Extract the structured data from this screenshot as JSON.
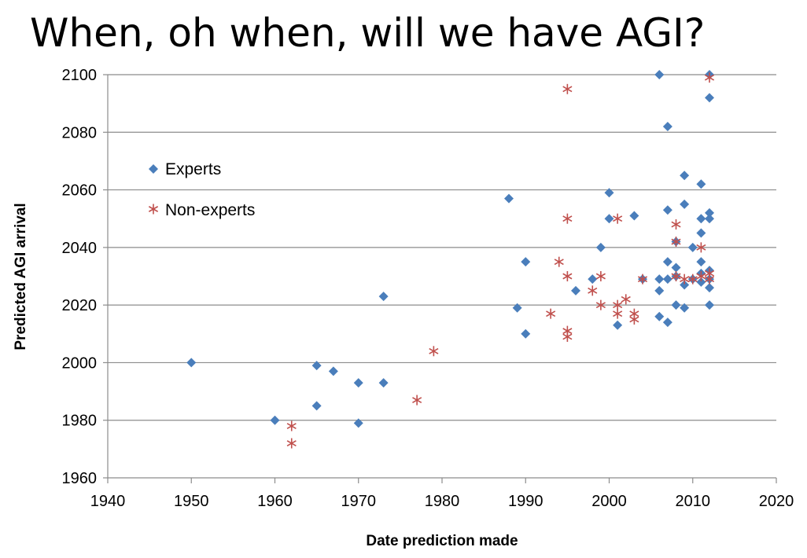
{
  "slide_title": "When, oh when, will we have AGI?",
  "chart_data": {
    "type": "scatter",
    "title": "When, oh when, will we have AGI?",
    "xlabel": "Date prediction made",
    "ylabel": "Predicted AGI arrival",
    "xlim": [
      1940,
      2020
    ],
    "ylim": [
      1960,
      2100
    ],
    "xticks": [
      1940,
      1950,
      1960,
      1970,
      1980,
      1990,
      2000,
      2010,
      2020
    ],
    "yticks": [
      1960,
      1980,
      2000,
      2020,
      2040,
      2060,
      2080,
      2100
    ],
    "grid": "horizontal",
    "legend_position": "top-left",
    "series": [
      {
        "name": "Experts",
        "marker": "diamond",
        "color": "#4a7ebb",
        "points": [
          [
            1950,
            2000
          ],
          [
            1960,
            1980
          ],
          [
            1965,
            1985
          ],
          [
            1965,
            1999
          ],
          [
            1967,
            1997
          ],
          [
            1970,
            1979
          ],
          [
            1970,
            1993
          ],
          [
            1973,
            1993
          ],
          [
            1973,
            2023
          ],
          [
            1988,
            2057
          ],
          [
            1989,
            2019
          ],
          [
            1990,
            2010
          ],
          [
            1990,
            2035
          ],
          [
            1996,
            2025
          ],
          [
            1998,
            2029
          ],
          [
            1999,
            2040
          ],
          [
            2000,
            2059
          ],
          [
            2000,
            2050
          ],
          [
            2001,
            2013
          ],
          [
            2003,
            2051
          ],
          [
            2004,
            2029
          ],
          [
            2006,
            2100
          ],
          [
            2006,
            2029
          ],
          [
            2006,
            2025
          ],
          [
            2006,
            2016
          ],
          [
            2007,
            2082
          ],
          [
            2007,
            2053
          ],
          [
            2007,
            2035
          ],
          [
            2007,
            2029
          ],
          [
            2007,
            2014
          ],
          [
            2008,
            2042
          ],
          [
            2008,
            2033
          ],
          [
            2008,
            2030
          ],
          [
            2008,
            2020
          ],
          [
            2009,
            2065
          ],
          [
            2009,
            2055
          ],
          [
            2009,
            2027
          ],
          [
            2009,
            2019
          ],
          [
            2010,
            2040
          ],
          [
            2010,
            2029
          ],
          [
            2011,
            2062
          ],
          [
            2011,
            2050
          ],
          [
            2011,
            2045
          ],
          [
            2011,
            2035
          ],
          [
            2011,
            2031
          ],
          [
            2011,
            2028
          ],
          [
            2012,
            2100
          ],
          [
            2012,
            2092
          ],
          [
            2012,
            2052
          ],
          [
            2012,
            2050
          ],
          [
            2012,
            2032
          ],
          [
            2012,
            2029
          ],
          [
            2012,
            2026
          ],
          [
            2012,
            2020
          ]
        ]
      },
      {
        "name": "Non-experts",
        "marker": "asterisk",
        "color": "#c0504d",
        "points": [
          [
            1962,
            1978
          ],
          [
            1962,
            1972
          ],
          [
            1977,
            1987
          ],
          [
            1979,
            2004
          ],
          [
            1993,
            2017
          ],
          [
            1994,
            2035
          ],
          [
            1995,
            2095
          ],
          [
            1995,
            2050
          ],
          [
            1995,
            2030
          ],
          [
            1995,
            2011
          ],
          [
            1995,
            2009
          ],
          [
            1998,
            2025
          ],
          [
            1999,
            2030
          ],
          [
            1999,
            2020
          ],
          [
            2001,
            2050
          ],
          [
            2001,
            2020
          ],
          [
            2001,
            2017
          ],
          [
            2002,
            2022
          ],
          [
            2003,
            2017
          ],
          [
            2003,
            2015
          ],
          [
            2004,
            2029
          ],
          [
            2008,
            2048
          ],
          [
            2008,
            2042
          ],
          [
            2008,
            2030
          ],
          [
            2009,
            2029
          ],
          [
            2010,
            2029
          ],
          [
            2011,
            2040
          ],
          [
            2011,
            2030
          ],
          [
            2012,
            2099
          ],
          [
            2012,
            2031
          ],
          [
            2012,
            2029
          ]
        ]
      }
    ]
  }
}
